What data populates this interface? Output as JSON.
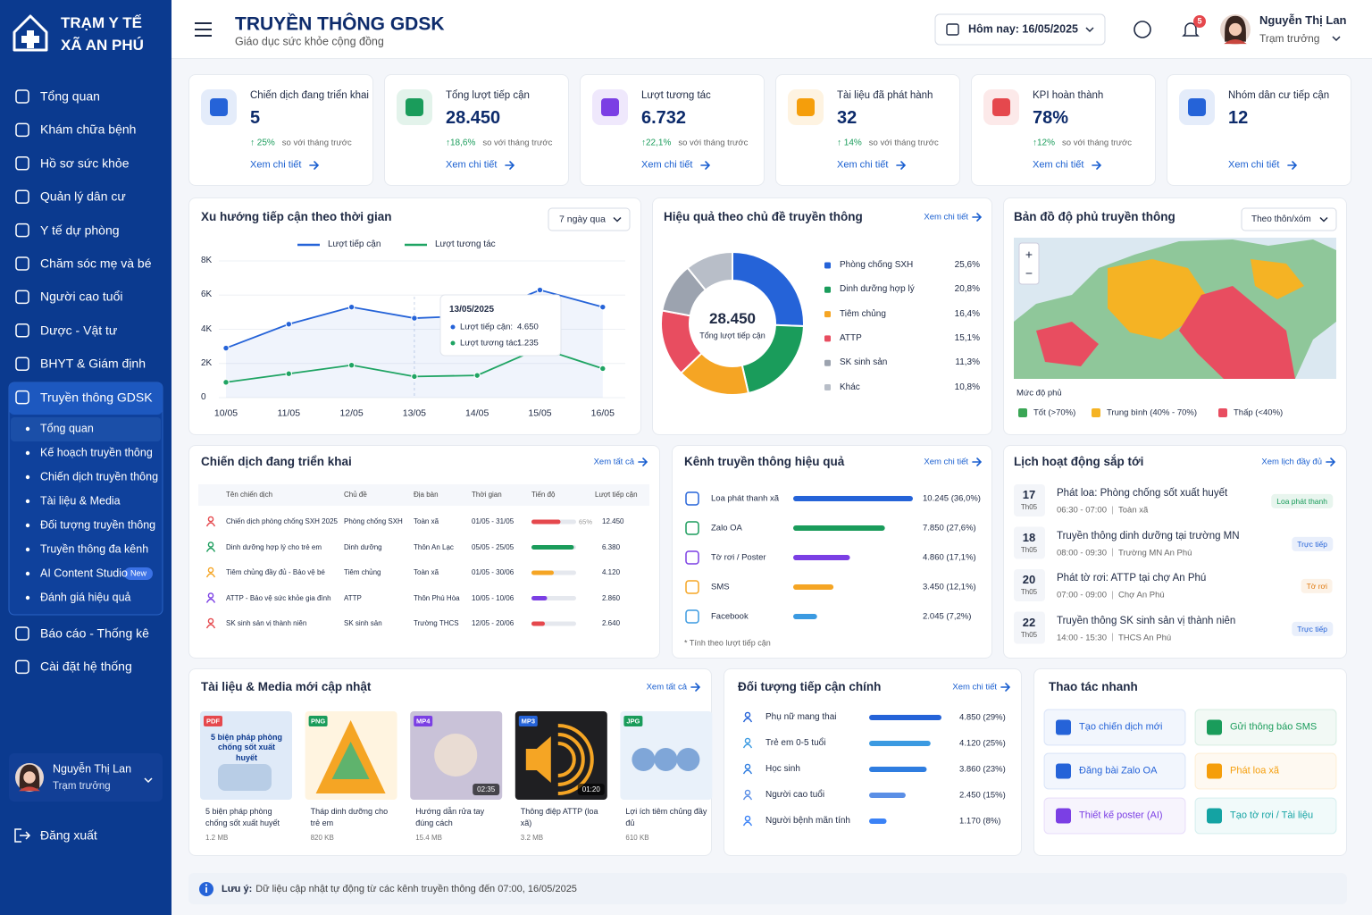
{
  "sidebar": {
    "brand": [
      "TRẠM Y TẾ",
      "XÃ AN PHÚ"
    ],
    "menu": [
      "Tổng quan",
      "Khám chữa bệnh",
      "Hồ sơ sức khỏe",
      "Quản lý dân cư",
      "Y tế dự phòng",
      "Chăm sóc mẹ và bé",
      "Người cao tuổi",
      "Dược - Vật tư",
      "BHYT & Giám định",
      "Truyền thông GDSK"
    ],
    "submenu": [
      "Tổng quan",
      "Kế hoạch truyền thông",
      "Chiến dịch truyền thông",
      "Tài liệu & Media",
      "Đối tượng truyền thông",
      "Truyền thông đa kênh",
      "AI Content Studio",
      "Đánh giá hiệu quả"
    ],
    "new_badge": "New",
    "menu_bottom": [
      "Báo cáo - Thống kê",
      "Cài đặt hệ thống"
    ],
    "user": {
      "name": "Nguyễn Thị Lan",
      "role": "Trạm trưởng"
    },
    "logout": "Đăng xuất"
  },
  "header": {
    "title": "TRUYỀN THÔNG GDSK",
    "subtitle": "Giáo dục sức khỏe cộng đồng",
    "date": "Hôm nay: 16/05/2025",
    "notifications": "5",
    "user": {
      "name": "Nguyễn Thị Lan",
      "role": "Trạm trưởng"
    }
  },
  "kpis": [
    {
      "label": "Chiến dịch đang triển khai",
      "value": "5",
      "change": "↑ 25%",
      "note": "so với tháng trước",
      "link": "Xem chi tiết",
      "color": "#2563d8"
    },
    {
      "label": "Tổng lượt tiếp cận",
      "value": "28.450",
      "change": "↑18,6%",
      "note": "so với tháng trước",
      "link": "Xem chi tiết",
      "color": "#1a9c5b"
    },
    {
      "label": "Lượt tương tác",
      "value": "6.732",
      "change": "↑22,1%",
      "note": "so với tháng trước",
      "link": "Xem chi tiết",
      "color": "#7b3fe4"
    },
    {
      "label": "Tài liệu đã phát hành",
      "value": "32",
      "change": "↑ 14%",
      "note": "so với tháng trước",
      "link": "Xem chi tiết",
      "color": "#f59e0b"
    },
    {
      "label": "KPI hoàn thành",
      "value": "78%",
      "change": "↑12%",
      "note": "so với tháng trước",
      "link": "Xem chi tiết",
      "color": "#e5484d"
    },
    {
      "label": "Nhóm dân cư tiếp cận",
      "value": "12",
      "link": "Xem chi tiết",
      "color": "#2563d8"
    }
  ],
  "trend": {
    "title": "Xu hướng tiếp cận theo thời gian",
    "filter": "7 ngày qua",
    "x": [
      "10/05",
      "11/05",
      "12/05",
      "13/05",
      "14/05",
      "15/05",
      "16/05"
    ],
    "ylim": [
      0,
      8000
    ],
    "yticks": [
      0,
      {
        "value": 2000,
        "label": "2K"
      },
      {
        "value": 4000,
        "label": "4K"
      },
      {
        "value": 6000,
        "label": "6K"
      },
      {
        "value": 8000,
        "label": "8K"
      }
    ],
    "series": [
      {
        "name": "Lượt tiếp cận",
        "color": "#2563d8",
        "values": [
          2900,
          4300,
          5300,
          4650,
          4800,
          6300,
          5300
        ]
      },
      {
        "name": "Lượt tương tác",
        "color": "#1fa463",
        "values": [
          900,
          1400,
          1900,
          1235,
          1300,
          2900,
          1700
        ]
      }
    ],
    "tooltip": {
      "date": "13/05/2025",
      "rows": [
        {
          "label": "Lượt tiếp cận:",
          "value": "4.650"
        },
        {
          "label": "Lượt tương tác:",
          "value": "1.235"
        }
      ]
    }
  },
  "topics": {
    "title": "Hiệu quả theo chủ đề truyền thông",
    "link": "Xem chi tiết",
    "total": "28.450",
    "total_label": "Tổng lượt tiếp cận",
    "items": [
      {
        "name": "Phòng chống SXH",
        "value": 25.6,
        "value_label": "25,6%",
        "color": "#2563d8"
      },
      {
        "name": "Dinh dưỡng hợp lý",
        "value": 20.8,
        "value_label": "20,8%",
        "color": "#1a9c5b"
      },
      {
        "name": "Tiêm chủng",
        "value": 16.4,
        "value_label": "16,4%",
        "color": "#f5a524"
      },
      {
        "name": "ATTP",
        "value": 15.1,
        "value_label": "15,1%",
        "color": "#e84d60"
      },
      {
        "name": "SK sinh sản",
        "value": 11.3,
        "value_label": "11,3%",
        "color": "#9ca3af"
      },
      {
        "name": "Khác",
        "value": 10.8,
        "value_label": "10,8%",
        "color": "#b8bec8"
      }
    ]
  },
  "map": {
    "title": "Bản đồ độ phủ truyền thông",
    "filter": "Theo thôn/xóm",
    "zoom": [
      "+",
      "−"
    ],
    "legend_title": "Mức độ phủ",
    "legend": [
      {
        "label": "Tốt (>70%)",
        "color": "#3aa655"
      },
      {
        "label": "Trung bình (40% - 70%)",
        "color": "#f5b324"
      },
      {
        "label": "Thấp (<40%)",
        "color": "#e84d60"
      }
    ]
  },
  "campaigns": {
    "title": "Chiến dịch đang triển khai",
    "link": "Xem tất cả",
    "columns": [
      "Tên chiến dịch",
      "Chủ đề",
      "Địa bàn",
      "Thời gian",
      "Tiến độ",
      "Lượt tiếp cận"
    ],
    "rows": [
      {
        "name": "Chiến dịch phòng chống SXH 2025",
        "topic": "Phòng chống SXH",
        "area": "Toàn xã",
        "time": "01/05 - 31/05",
        "progress": 65,
        "progress_label": "65%",
        "reach": "12.450",
        "color": "#e5484d"
      },
      {
        "name": "Dinh dưỡng hợp lý cho trẻ em",
        "topic": "Dinh dưỡng",
        "area": "Thôn An Lạc",
        "time": "05/05 - 25/05",
        "progress": 95,
        "reach": "6.380",
        "color": "#1a9c5b"
      },
      {
        "name": "Tiêm chủng đầy đủ - Bảo vệ bé",
        "topic": "Tiêm chủng",
        "area": "Toàn xã",
        "time": "01/05 - 30/06",
        "progress": 50,
        "reach": "4.120",
        "color": "#f5a524"
      },
      {
        "name": "ATTP - Bảo vệ sức khỏe gia đình",
        "topic": "ATTP",
        "area": "Thôn Phú Hòa",
        "time": "10/05 - 10/06",
        "progress": 35,
        "reach": "2.860",
        "color": "#7b3fe4"
      },
      {
        "name": "SK sinh sản vị thành niên",
        "topic": "SK sinh sản",
        "area": "Trường THCS",
        "time": "12/05 - 20/06",
        "progress": 30,
        "reach": "2.640",
        "color": "#e5484d"
      }
    ]
  },
  "channels": {
    "title": "Kênh truyền thông hiệu quả",
    "link": "Xem chi tiết",
    "items": [
      {
        "name": "Loa phát thanh xã",
        "value": 10245,
        "value_label": "10.245 (36,0%)",
        "color": "#2563d8"
      },
      {
        "name": "Zalo OA",
        "value": 7850,
        "value_label": "7.850 (27,6%)",
        "color": "#1a9c5b"
      },
      {
        "name": "Tờ rơi / Poster",
        "value": 4860,
        "value_label": "4.860 (17,1%)",
        "color": "#7b3fe4"
      },
      {
        "name": "SMS",
        "value": 3450,
        "value_label": "3.450 (12,1%)",
        "color": "#f5a524"
      },
      {
        "name": "Facebook",
        "value": 2045,
        "value_label": "2.045 (7,2%)",
        "color": "#3b9ae1"
      }
    ],
    "note": "* Tính theo lượt tiếp cận"
  },
  "schedule": {
    "title": "Lịch hoạt động sắp tới",
    "link": "Xem lịch đầy đủ",
    "items": [
      {
        "day": "17",
        "month": "Th05",
        "title": "Phát loa: Phòng chống sốt xuất huyết",
        "time": "06:30 - 07:00",
        "place": "Toàn xã",
        "tag": "Loa phát thanh",
        "color": "#1a9c5b"
      },
      {
        "day": "18",
        "month": "Th05",
        "title": "Truyền thông dinh dưỡng tại trường MN",
        "time": "08:00 - 09:30",
        "place": "Trường MN An Phú",
        "tag": "Trực tiếp",
        "color": "#2563d8"
      },
      {
        "day": "20",
        "month": "Th05",
        "title": "Phát tờ rơi: ATTP tại chợ An Phú",
        "time": "07:00 - 09:00",
        "place": "Chợ An Phú",
        "tag": "Tờ rơi",
        "color": "#e07b12"
      },
      {
        "day": "22",
        "month": "Th05",
        "title": "Truyền thông SK sinh sản vị thành niên",
        "time": "14:00 - 15:30",
        "place": "THCS An Phú",
        "tag": "Trực tiếp",
        "color": "#2563d8"
      }
    ]
  },
  "media": {
    "title": "Tài liệu & Media mới cập nhật",
    "link": "Xem tất cả",
    "items": [
      {
        "type": "PDF",
        "title": "5 biện pháp phòng chống sốt xuất huyết",
        "size": "1.2 MB",
        "thumb_text": "5 biện pháp phòng chống sốt xuất huyết"
      },
      {
        "type": "PNG",
        "title": "Tháp dinh dưỡng cho trẻ em",
        "size": "820 KB"
      },
      {
        "type": "MP4",
        "title": "Hướng dẫn rửa tay đúng cách",
        "size": "15.4 MB",
        "duration": "02:35"
      },
      {
        "type": "MP3",
        "title": "Thông điệp ATTP (loa xã)",
        "size": "3.2 MB",
        "duration": "01:20"
      },
      {
        "type": "JPG",
        "title": "Lợi ích tiêm chủng đầy đủ",
        "size": "610 KB"
      }
    ]
  },
  "audience": {
    "title": "Đối tượng tiếp cận chính",
    "link": "Xem chi tiết",
    "items": [
      {
        "name": "Phụ nữ mang thai",
        "value": 4850,
        "value_label": "4.850 (29%)",
        "color": "#2563d8"
      },
      {
        "name": "Trẻ em 0-5 tuổi",
        "value": 4120,
        "value_label": "4.120 (25%)",
        "color": "#3b9ae1"
      },
      {
        "name": "Học sinh",
        "value": 3860,
        "value_label": "3.860 (23%)",
        "color": "#2f7de0"
      },
      {
        "name": "Người cao tuổi",
        "value": 2450,
        "value_label": "2.450 (15%)",
        "color": "#5b8fe6"
      },
      {
        "name": "Người bệnh mãn tính",
        "value": 1170,
        "value_label": "1.170 (8%)",
        "color": "#3b82f6"
      }
    ]
  },
  "quick_actions": {
    "title": "Thao tác nhanh",
    "items": [
      {
        "label": "Tạo chiến dịch mới",
        "color": "#2563d8"
      },
      {
        "label": "Gửi thông báo SMS",
        "color": "#1a9c5b"
      },
      {
        "label": "Đăng bài Zalo OA",
        "color": "#2563d8"
      },
      {
        "label": "Phát loa xã",
        "color": "#f59e0b"
      },
      {
        "label": "Thiết kế poster (AI)",
        "color": "#7b3fe4"
      },
      {
        "label": "Tạo tờ rơi / Tài liệu",
        "color": "#14a3a3"
      }
    ]
  },
  "notice": {
    "label": "Lưu ý:",
    "text": "Dữ liệu cập nhật tự động từ các kênh truyền thông đến 07:00, 16/05/2025"
  }
}
